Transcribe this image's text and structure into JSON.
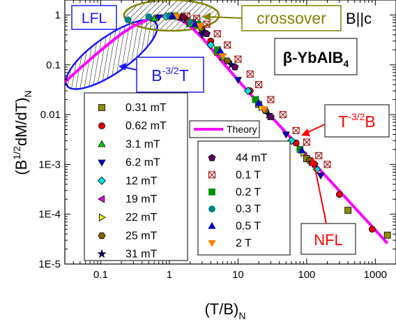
{
  "chart_data": {
    "type": "scatter",
    "title": "",
    "xlabel": "(T/B)",
    "xlabel_sub": "N",
    "ylabel_base": "(B",
    "ylabel_sup": "1/2",
    "ylabel_main": "dM/dT)",
    "ylabel_sub": "N",
    "xscale": "log",
    "yscale": "log",
    "xlim": [
      0.03,
      2000
    ],
    "ylim": [
      1e-05,
      2
    ],
    "grid": false,
    "xticks": [
      {
        "v": 0.1,
        "label": "0.1"
      },
      {
        "v": 1,
        "label": "1"
      },
      {
        "v": 10,
        "label": "10"
      },
      {
        "v": 100,
        "label": "100"
      },
      {
        "v": 1000,
        "label": "1000"
      }
    ],
    "yticks": [
      {
        "v": 1,
        "label": "1"
      },
      {
        "v": 0.1,
        "label": "0.1"
      },
      {
        "v": 0.01,
        "label": "0.01"
      },
      {
        "v": 0.001,
        "label": "1E-3"
      },
      {
        "v": 0.0001,
        "label": "1E-4"
      },
      {
        "v": 1e-05,
        "label": "1E-5"
      }
    ],
    "theory": {
      "name": "Theory",
      "color": "#ff00ff",
      "points": [
        [
          0.03,
          0.045
        ],
        [
          0.05,
          0.085
        ],
        [
          0.08,
          0.15
        ],
        [
          0.12,
          0.24
        ],
        [
          0.2,
          0.42
        ],
        [
          0.3,
          0.6
        ],
        [
          0.5,
          0.82
        ],
        [
          0.7,
          0.93
        ],
        [
          1.0,
          0.95
        ],
        [
          1.5,
          0.78
        ],
        [
          2,
          0.6
        ],
        [
          3,
          0.35
        ],
        [
          5,
          0.15
        ],
        [
          8,
          0.07
        ],
        [
          15,
          0.026
        ],
        [
          30,
          0.0093
        ],
        [
          60,
          0.0033
        ],
        [
          100,
          0.0015
        ],
        [
          200,
          0.00054
        ],
        [
          400,
          0.00019
        ],
        [
          700,
          8.2e-05
        ],
        [
          1000,
          4.8e-05
        ],
        [
          1500,
          2.6e-05
        ]
      ]
    },
    "series_legend_left": [
      {
        "name": "0.31 mT",
        "marker": "square",
        "color": "#8b8b00",
        "stroke": "#000000"
      },
      {
        "name": "0.62 mT",
        "marker": "circle",
        "color": "#e00000",
        "stroke": "#000000"
      },
      {
        "name": "3.1 mT",
        "marker": "triangle-up",
        "color": "#00d000",
        "stroke": "#000000"
      },
      {
        "name": "6.2 mT",
        "marker": "triangle-down",
        "color": "#0000d0",
        "stroke": "#000000"
      },
      {
        "name": "12 mT",
        "marker": "diamond",
        "color": "#00e0e0",
        "stroke": "#000000"
      },
      {
        "name": "19 mT",
        "marker": "triangle-left",
        "color": "#e000e0",
        "stroke": "#000000"
      },
      {
        "name": "22 mT",
        "marker": "triangle-right",
        "color": "#f0f000",
        "stroke": "#000000"
      },
      {
        "name": "25 mT",
        "marker": "hexagon",
        "color": "#806000",
        "stroke": "#000000"
      },
      {
        "name": "31 mT",
        "marker": "star",
        "color": "#000080",
        "stroke": "#000000"
      }
    ],
    "series_legend_right": [
      {
        "name": "44 mT",
        "marker": "pentagon",
        "color": "#600060",
        "stroke": "#000000"
      },
      {
        "name": "0.1 T",
        "marker": "x-square",
        "color": "#a00000",
        "stroke": "#a00000"
      },
      {
        "name": "0.2 T",
        "marker": "square",
        "color": "#009000",
        "stroke": "#009000"
      },
      {
        "name": "0.3 T",
        "marker": "circle",
        "color": "#008080",
        "stroke": "#008080"
      },
      {
        "name": "0.5 T",
        "marker": "triangle-up",
        "color": "#0000c0",
        "stroke": "#0000c0"
      },
      {
        "name": "2 T",
        "marker": "triangle-down",
        "color": "#ff8000",
        "stroke": "#ff8000"
      }
    ],
    "data_points": [
      {
        "series": "0.31 mT",
        "pts": [
          [
            1.1,
            0.95
          ],
          [
            2,
            0.7
          ],
          [
            5,
            0.18
          ],
          [
            20,
            0.016
          ],
          [
            100,
            0.0013
          ],
          [
            400,
            0.00012
          ],
          [
            1500,
            3.8e-05
          ]
        ]
      },
      {
        "series": "0.62 mT",
        "pts": [
          [
            1,
            0.96
          ],
          [
            1.8,
            0.8
          ],
          [
            4,
            0.3
          ],
          [
            15,
            0.03
          ],
          [
            70,
            0.0027
          ],
          [
            300,
            0.00025
          ],
          [
            900,
            5e-05
          ]
        ]
      },
      {
        "series": "3.1 mT",
        "pts": [
          [
            0.6,
            0.85
          ],
          [
            1,
            0.95
          ],
          [
            2,
            0.65
          ],
          [
            6,
            0.14
          ],
          [
            30,
            0.009
          ],
          [
            120,
            0.0011
          ]
        ]
      },
      {
        "series": "6.2 mT",
        "pts": [
          [
            0.7,
            0.9
          ],
          [
            1.3,
            0.92
          ],
          [
            3,
            0.4
          ],
          [
            10,
            0.05
          ],
          [
            50,
            0.004
          ],
          [
            160,
            0.0006
          ]
        ]
      },
      {
        "series": "12 mT",
        "pts": [
          [
            0.9,
            0.93
          ],
          [
            1.6,
            0.85
          ],
          [
            4,
            0.25
          ],
          [
            14,
            0.03
          ],
          [
            60,
            0.003
          ],
          [
            140,
            0.0008
          ]
        ]
      },
      {
        "series": "19 mT",
        "pts": [
          [
            1,
            0.95
          ],
          [
            2.2,
            0.7
          ],
          [
            5,
            0.2
          ],
          [
            18,
            0.02
          ],
          [
            80,
            0.002
          ]
        ]
      },
      {
        "series": "22 mT",
        "pts": [
          [
            1.2,
            0.95
          ],
          [
            2.5,
            0.6
          ],
          [
            6,
            0.16
          ],
          [
            22,
            0.014
          ],
          [
            90,
            0.0017
          ]
        ]
      },
      {
        "series": "25 mT",
        "pts": [
          [
            1.4,
            0.93
          ],
          [
            3,
            0.5
          ],
          [
            7,
            0.12
          ],
          [
            25,
            0.012
          ],
          [
            110,
            0.0012
          ]
        ]
      },
      {
        "series": "31 mT",
        "pts": [
          [
            1.5,
            0.92
          ],
          [
            3.2,
            0.45
          ],
          [
            8,
            0.1
          ],
          [
            28,
            0.01
          ],
          [
            120,
            0.0011
          ]
        ]
      },
      {
        "series": "44 mT",
        "pts": [
          [
            1.6,
            0.9
          ],
          [
            3.5,
            0.42
          ],
          [
            9,
            0.09
          ],
          [
            30,
            0.009
          ],
          [
            130,
            0.001
          ]
        ]
      },
      {
        "series": "0.1 T",
        "pts": [
          [
            1.8,
            0.95
          ],
          [
            2.5,
            0.85
          ],
          [
            3.5,
            0.65
          ],
          [
            5,
            0.42
          ],
          [
            7,
            0.25
          ],
          [
            10,
            0.13
          ],
          [
            15,
            0.065
          ],
          [
            20,
            0.04
          ],
          [
            30,
            0.02
          ],
          [
            45,
            0.01
          ],
          [
            70,
            0.0048
          ],
          [
            100,
            0.0028
          ],
          [
            150,
            0.0015
          ],
          [
            200,
            0.001
          ]
        ]
      },
      {
        "series": "0.2 T",
        "pts": [
          [
            1.2,
            0.96
          ],
          [
            2.6,
            0.65
          ],
          [
            5,
            0.2
          ],
          [
            18,
            0.02
          ],
          [
            80,
            0.002
          ]
        ]
      },
      {
        "series": "0.3 T",
        "pts": [
          [
            0.25,
            0.8
          ],
          [
            0.5,
            0.92
          ],
          [
            1,
            0.97
          ],
          [
            2,
            0.72
          ]
        ]
      },
      {
        "series": "0.5 T",
        "pts": [
          [
            1.1,
            0.96
          ],
          [
            2.4,
            0.66
          ],
          [
            5.5,
            0.19
          ],
          [
            20,
            0.017
          ],
          [
            85,
            0.0019
          ]
        ]
      },
      {
        "series": "2 T",
        "pts": [
          [
            1.3,
            0.95
          ],
          [
            2.8,
            0.6
          ],
          [
            6,
            0.15
          ],
          [
            24,
            0.013
          ]
        ]
      }
    ],
    "annotations": {
      "lfl": "LFL",
      "crossover": "crossover",
      "bc": "B||c",
      "compound_prefix": "β-YbAlB",
      "compound_sub": "4",
      "b32t_base": "B",
      "b32t_sup": "-3/2",
      "b32t_tail": "T",
      "t32b_base": "T",
      "t32b_sup": "-3/2",
      "t32b_tail": "B",
      "nfl": "NFL",
      "theory_legend": "Theory"
    },
    "colors": {
      "lfl_blue": "#1a1aff",
      "crossover_olive": "#808000",
      "red_label": "#ff0000",
      "theory": "#ff00ff"
    }
  }
}
